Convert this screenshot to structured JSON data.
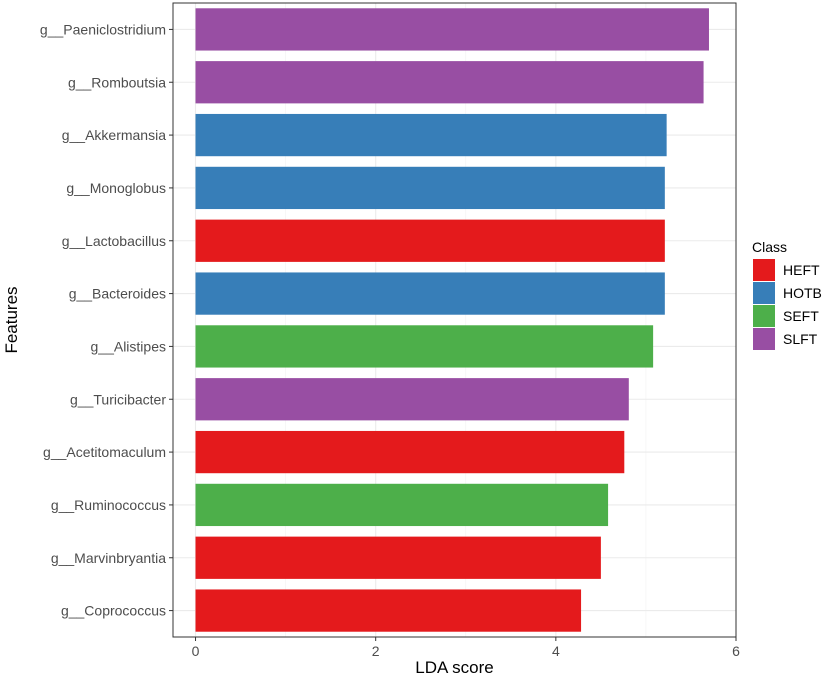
{
  "chart_data": {
    "type": "bar",
    "orientation": "horizontal",
    "categories": [
      "g__Paeniclostridium",
      "g__Romboutsia",
      "g__Akkermansia",
      "g__Monoglobus",
      "g__Lactobacillus",
      "g__Bacteroides",
      "g__Alistipes",
      "g__Turicibacter",
      "g__Acetitomaculum",
      "g__Ruminococcus",
      "g__Marvinbryantia",
      "g__Coprococcus"
    ],
    "values": [
      5.7,
      5.64,
      5.23,
      5.21,
      5.21,
      5.21,
      5.08,
      4.81,
      4.76,
      4.58,
      4.5,
      4.28
    ],
    "classes": [
      "SLFT",
      "SLFT",
      "HOTB",
      "HOTB",
      "HEFT",
      "HOTB",
      "SEFT",
      "SLFT",
      "HEFT",
      "SEFT",
      "HEFT",
      "HEFT"
    ],
    "xlabel": "LDA score",
    "ylabel": "Features",
    "xlim": [
      -0.25,
      6.0
    ],
    "xticks": [
      0,
      2,
      4,
      6
    ],
    "grid": true,
    "legend": {
      "title": "Class",
      "placement": "right",
      "entries": [
        {
          "name": "HEFT",
          "color": "#e41a1c"
        },
        {
          "name": "HOTB",
          "color": "#377eb8"
        },
        {
          "name": "SEFT",
          "color": "#4daf4a"
        },
        {
          "name": "SLFT",
          "color": "#984ea3"
        }
      ]
    }
  }
}
